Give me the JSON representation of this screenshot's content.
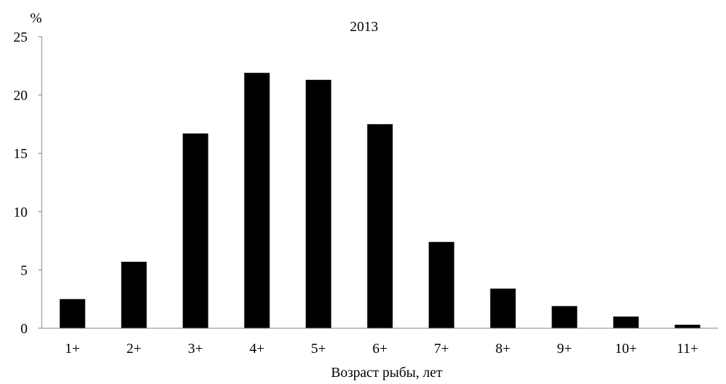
{
  "chart_data": {
    "type": "bar",
    "title": "2013",
    "ylabel": "%",
    "xlabel": "Возраст рыбы, лет",
    "categories": [
      "1+",
      "2+",
      "3+",
      "4+",
      "5+",
      "6+",
      "7+",
      "8+",
      "9+",
      "10+",
      "11+"
    ],
    "values": [
      2.5,
      5.7,
      16.7,
      21.9,
      21.3,
      17.5,
      7.4,
      3.4,
      1.9,
      1.0,
      0.3
    ],
    "ylim": [
      0,
      25
    ],
    "yticks": [
      0,
      5,
      10,
      15,
      20,
      25
    ],
    "grid": false,
    "legend": "none",
    "bar_color": "#000000",
    "axis_color": "#808080"
  }
}
